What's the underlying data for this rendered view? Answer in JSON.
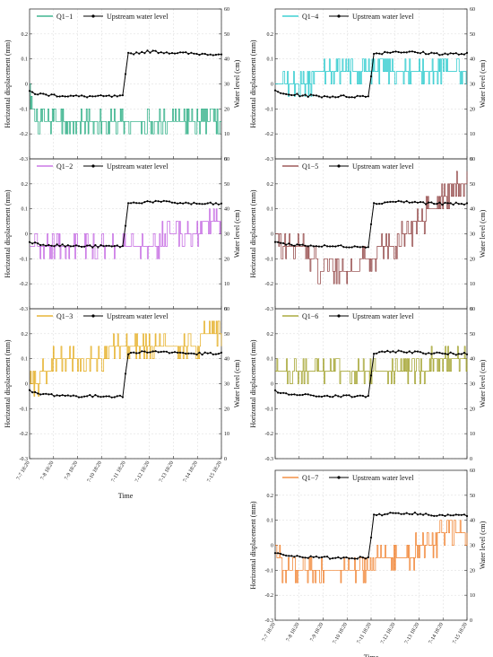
{
  "figure": {
    "x_axis_label": "Time",
    "x_tick_labels": [
      "7-7 18:20",
      "7-8 18:20",
      "7-9 18:20",
      "7-10 18:20",
      "7-11 18:20",
      "7-12 18:20",
      "7-13 18:20",
      "7-14 18:20",
      "7-15 18:20"
    ],
    "left_axis_label": "Horizontal displacement (mm)",
    "right_axis_label": "Water level (cm)",
    "left_ticks": [
      "-0.3",
      "-0.2",
      "-0.1",
      "0",
      "0.1",
      "0.2"
    ],
    "right_ticks": [
      "0",
      "10",
      "20",
      "30",
      "40",
      "50",
      "60"
    ],
    "water_series_label": "Upstream water level",
    "water_color": "#000000"
  },
  "chart_data": [
    {
      "type": "line",
      "panel": "Q1-1",
      "series": [
        {
          "name": "Q1−1",
          "color": "#1aa77a",
          "axis": "left",
          "x": [
            0,
            0.25,
            0.5,
            1,
            2,
            3,
            4,
            4.5,
            5,
            6,
            6.5,
            7,
            7.5,
            8
          ],
          "values": [
            -0.02,
            -0.15,
            -0.15,
            -0.15,
            -0.16,
            -0.16,
            -0.17,
            -0.16,
            -0.16,
            -0.16,
            -0.16,
            -0.15,
            -0.16,
            -0.15
          ]
        },
        {
          "name": "Upstream water level",
          "color": "#000000",
          "axis": "right",
          "x": [
            0,
            0.3,
            1,
            2,
            3,
            3.95,
            4.05,
            5,
            6,
            7,
            8
          ],
          "values": [
            27,
            26,
            25.5,
            25,
            25,
            25,
            42,
            43,
            42.5,
            42,
            42
          ]
        }
      ],
      "ylim": [
        -0.3,
        0.3
      ],
      "y2lim": [
        0,
        60
      ],
      "xlim": [
        0,
        8
      ]
    },
    {
      "type": "line",
      "panel": "Q1-4",
      "series": [
        {
          "name": "Q1−4",
          "color": "#19c6c9",
          "axis": "left",
          "x": [
            0,
            1,
            2,
            3,
            4,
            5,
            6,
            7,
            8
          ],
          "values": [
            0.02,
            0.02,
            0.03,
            0.03,
            0.04,
            0.04,
            0.04,
            0.04,
            0.04
          ]
        },
        {
          "name": "Upstream water level",
          "color": "#000000",
          "axis": "right",
          "x": [
            0,
            0.3,
            1,
            2,
            3,
            3.95,
            4.05,
            5,
            6,
            7,
            8
          ],
          "values": [
            27,
            26,
            25.5,
            25,
            25,
            25,
            42,
            43,
            42.5,
            42,
            42
          ]
        }
      ],
      "ylim": [
        -0.3,
        0.3
      ],
      "y2lim": [
        0,
        60
      ],
      "xlim": [
        0,
        8
      ]
    },
    {
      "type": "line",
      "panel": "Q1-2",
      "series": [
        {
          "name": "Q1−2",
          "color": "#c05ee0",
          "axis": "left",
          "x": [
            0,
            1,
            2,
            3,
            4,
            5,
            6,
            7,
            8
          ],
          "values": [
            -0.04,
            -0.05,
            -0.05,
            -0.05,
            -0.04,
            -0.03,
            -0.02,
            0.02,
            0.05
          ]
        },
        {
          "name": "Upstream water level",
          "color": "#000000",
          "axis": "right",
          "x": [
            0,
            0.3,
            1,
            2,
            3,
            3.95,
            4.05,
            5,
            6,
            7,
            8
          ],
          "values": [
            27,
            26,
            25.5,
            25,
            25,
            25,
            42,
            43,
            42.5,
            42,
            42
          ]
        }
      ],
      "ylim": [
        -0.3,
        0.3
      ],
      "y2lim": [
        0,
        60
      ],
      "xlim": [
        0,
        8
      ]
    },
    {
      "type": "line",
      "panel": "Q1-5",
      "series": [
        {
          "name": "Q1−5",
          "color": "#8b3a3a",
          "axis": "left",
          "x": [
            0,
            0.5,
            1,
            1.5,
            2,
            3,
            4,
            4.5,
            5,
            5.5,
            6,
            6.5,
            7,
            7.5,
            8
          ],
          "values": [
            0.0,
            -0.05,
            -0.05,
            -0.1,
            -0.15,
            -0.15,
            -0.1,
            -0.05,
            -0.05,
            0.0,
            0.05,
            0.1,
            0.15,
            0.2,
            0.2
          ]
        },
        {
          "name": "Upstream water level",
          "color": "#000000",
          "axis": "right",
          "x": [
            0,
            0.3,
            1,
            2,
            3,
            3.95,
            4.05,
            5,
            6,
            7,
            8
          ],
          "values": [
            27,
            26,
            25.5,
            25,
            25,
            25,
            42,
            43,
            42.5,
            42,
            42
          ]
        }
      ],
      "ylim": [
        -0.3,
        0.3
      ],
      "y2lim": [
        0,
        60
      ],
      "xlim": [
        0,
        8
      ]
    },
    {
      "type": "line",
      "panel": "Q1-3",
      "series": [
        {
          "name": "Q1−3",
          "color": "#e3a812",
          "axis": "left",
          "x": [
            0,
            0.5,
            1,
            1.5,
            2,
            3,
            4,
            5,
            6,
            7,
            7.5,
            8
          ],
          "values": [
            0.0,
            0.03,
            0.08,
            0.1,
            0.1,
            0.12,
            0.14,
            0.15,
            0.15,
            0.17,
            0.19,
            0.18
          ]
        },
        {
          "name": "Upstream water level",
          "color": "#000000",
          "axis": "right",
          "x": [
            0,
            0.3,
            1,
            2,
            3,
            3.95,
            4.05,
            5,
            6,
            7,
            8
          ],
          "values": [
            27,
            26,
            25.5,
            25,
            25,
            25,
            42,
            43,
            42.5,
            42,
            42
          ]
        }
      ],
      "ylim": [
        -0.3,
        0.3
      ],
      "y2lim": [
        0,
        60
      ],
      "xlim": [
        0,
        8
      ]
    },
    {
      "type": "line",
      "panel": "Q1-6",
      "series": [
        {
          "name": "Q1−6",
          "color": "#9a9a1a",
          "axis": "left",
          "x": [
            0,
            1,
            2,
            3,
            4,
            5,
            6,
            6.5,
            7,
            8
          ],
          "values": [
            0.05,
            0.05,
            0.05,
            0.05,
            0.05,
            0.05,
            0.05,
            0.08,
            0.09,
            0.09
          ]
        },
        {
          "name": "Upstream water level",
          "color": "#000000",
          "axis": "right",
          "x": [
            0,
            0.3,
            1,
            2,
            3,
            3.95,
            4.05,
            5,
            6,
            7,
            8
          ],
          "values": [
            27,
            26,
            25.5,
            25,
            25,
            25,
            42,
            43,
            42.5,
            42,
            42
          ]
        }
      ],
      "ylim": [
        -0.3,
        0.3
      ],
      "y2lim": [
        0,
        60
      ],
      "xlim": [
        0,
        8
      ]
    },
    {
      "type": "line",
      "panel": "Q1-7",
      "series": [
        {
          "name": "Q1−7",
          "color": "#f07a22",
          "axis": "left",
          "x": [
            0,
            0.5,
            1,
            2,
            3,
            4,
            5,
            6,
            6.5,
            7,
            8
          ],
          "values": [
            -0.05,
            -0.1,
            -0.1,
            -0.1,
            -0.1,
            -0.08,
            -0.05,
            -0.02,
            0.0,
            0.05,
            0.05
          ]
        },
        {
          "name": "Upstream water level",
          "color": "#000000",
          "axis": "right",
          "x": [
            0,
            0.3,
            1,
            2,
            3,
            3.95,
            4.05,
            5,
            6,
            7,
            8
          ],
          "values": [
            27,
            26,
            25.5,
            25,
            25,
            25,
            42,
            43,
            42.5,
            42,
            42
          ]
        }
      ],
      "ylim": [
        -0.3,
        0.3
      ],
      "y2lim": [
        0,
        60
      ],
      "xlim": [
        0,
        8
      ]
    }
  ]
}
